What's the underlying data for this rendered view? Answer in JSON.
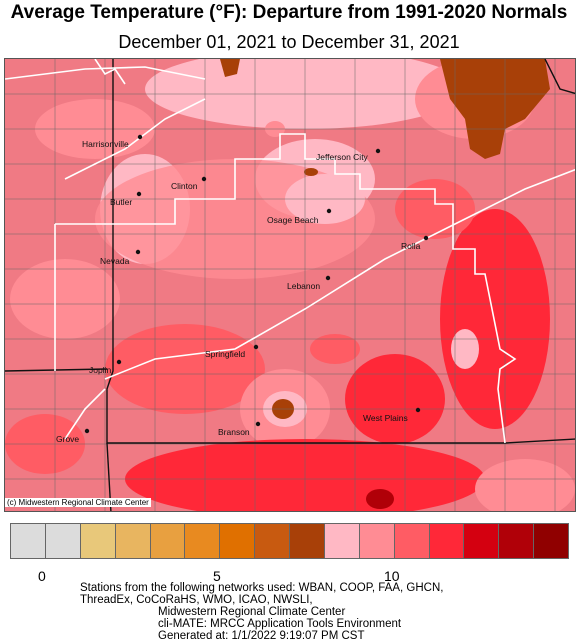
{
  "title": "Average Temperature (°F): Departure from 1991-2020 Normals",
  "subtitle": "December 01, 2021 to December 31, 2021",
  "credit": "(c) Midwestern Regional Climate Center",
  "cities": [
    {
      "name": "Harrisonville"
    },
    {
      "name": "Jefferson City"
    },
    {
      "name": "Clinton"
    },
    {
      "name": "Butler"
    },
    {
      "name": "Osage Beach"
    },
    {
      "name": "Rolla"
    },
    {
      "name": "Nevada"
    },
    {
      "name": "Lebanon"
    },
    {
      "name": "Springfield"
    },
    {
      "name": "Joplin"
    },
    {
      "name": "West Plains"
    },
    {
      "name": "Branson"
    },
    {
      "name": "Grove"
    }
  ],
  "legend": {
    "colors": [
      "#dcdcdc",
      "#dcdcdc",
      "#e8c87a",
      "#e8b560",
      "#e8a040",
      "#e88a20",
      "#e07000",
      "#c85a10",
      "#a84008",
      "#ffb8c4",
      "#ff8c94",
      "#ff5c64",
      "#ff2838",
      "#d40010",
      "#b00008",
      "#900000"
    ],
    "tick_labels": [
      "0",
      "5",
      "10"
    ]
  },
  "footer": {
    "line1": "Stations from the following networks used: WBAN, COOP, FAA, GHCN,",
    "line2": "ThreadEx, CoCoRaHS, WMO, ICAO, NWSLI,",
    "line3": "Midwestern Regional Climate Center",
    "line4": "cli-MATE: MRCC Application Tools Environment",
    "line5": "Generated at: 1/1/2022 9:19:07 PM CST"
  }
}
